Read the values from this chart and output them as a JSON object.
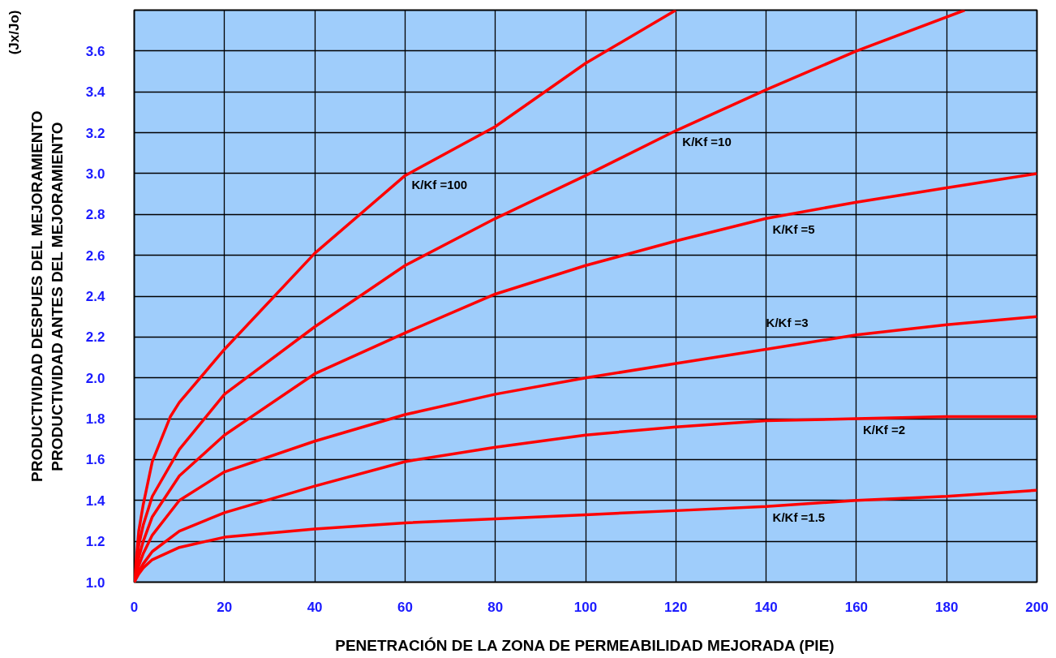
{
  "chart_data": {
    "type": "line",
    "xlabel": "PENETRACIÓN DE LA ZONA DE PERMEABILIDAD MEJORADA (PIE)",
    "ylabel": "PRODUCTIVIDAD DESPUES DEL MEJORAMIENTO\nPRODUCTIVIDAD ANTES DEL MEJORAMIENTO",
    "annotations": [
      "(Jx/Jo)"
    ],
    "xlim": [
      0,
      200
    ],
    "ylim": [
      1.0,
      3.8
    ],
    "xticks": [
      0,
      20,
      40,
      60,
      80,
      100,
      120,
      140,
      160,
      180,
      200
    ],
    "yticks": [
      {
        "value": 1.0,
        "label": "1.0"
      },
      1.2,
      1.4,
      1.6,
      1.8,
      {
        "value": 2.0,
        "label": "2.0"
      },
      2.2,
      2.4,
      2.6,
      2.8,
      {
        "value": 3.0,
        "label": "3.0"
      },
      3.2,
      3.4,
      3.6,
      {
        "value": 3.8,
        "label": null
      }
    ],
    "grid": true,
    "marker": "none",
    "line_style": "solid",
    "series": [
      {
        "name": "K/Kf =100",
        "color": "#ff0000",
        "x": [
          0,
          1,
          2,
          4,
          8,
          10,
          20,
          40,
          60,
          80,
          100,
          120
        ],
        "values": [
          1.0,
          1.25,
          1.38,
          1.59,
          1.81,
          1.88,
          2.14,
          2.61,
          2.99,
          3.23,
          3.54,
          3.8
        ]
      },
      {
        "name": "K/Kf =10",
        "color": "#ff0000",
        "x": [
          0,
          1,
          2,
          4,
          10,
          20,
          40,
          60,
          80,
          100,
          120,
          140,
          160,
          184
        ],
        "values": [
          1.0,
          1.18,
          1.28,
          1.42,
          1.65,
          1.92,
          2.25,
          2.55,
          2.78,
          2.99,
          3.21,
          3.41,
          3.6,
          3.8
        ]
      },
      {
        "name": "K/Kf =5",
        "color": "#ff0000",
        "x": [
          0,
          1,
          2,
          4,
          10,
          20,
          40,
          60,
          80,
          100,
          120,
          140,
          160,
          180,
          200
        ],
        "values": [
          1.0,
          1.12,
          1.2,
          1.32,
          1.52,
          1.72,
          2.02,
          2.22,
          2.41,
          2.55,
          2.67,
          2.78,
          2.86,
          2.93,
          3.0
        ]
      },
      {
        "name": "K/Kf =3",
        "color": "#ff0000",
        "x": [
          0,
          1,
          2,
          4,
          10,
          20,
          40,
          60,
          80,
          100,
          120,
          140,
          160,
          180,
          200
        ],
        "values": [
          1.0,
          1.08,
          1.14,
          1.23,
          1.4,
          1.54,
          1.69,
          1.82,
          1.92,
          2.0,
          2.07,
          2.14,
          2.21,
          2.26,
          2.3
        ]
      },
      {
        "name": "K/Kf =2",
        "color": "#ff0000",
        "x": [
          0,
          1,
          2,
          4,
          10,
          20,
          40,
          60,
          80,
          100,
          120,
          140,
          160,
          180,
          200
        ],
        "values": [
          1.0,
          1.05,
          1.09,
          1.15,
          1.25,
          1.34,
          1.47,
          1.59,
          1.66,
          1.72,
          1.76,
          1.79,
          1.8,
          1.81,
          1.81
        ]
      },
      {
        "name": "K/Kf =1.5",
        "color": "#ff0000",
        "x": [
          0,
          1,
          2,
          4,
          10,
          20,
          40,
          60,
          80,
          100,
          120,
          140,
          160,
          180,
          200
        ],
        "values": [
          1.0,
          1.04,
          1.07,
          1.11,
          1.17,
          1.22,
          1.26,
          1.29,
          1.31,
          1.33,
          1.35,
          1.37,
          1.4,
          1.42,
          1.45
        ]
      }
    ]
  }
}
